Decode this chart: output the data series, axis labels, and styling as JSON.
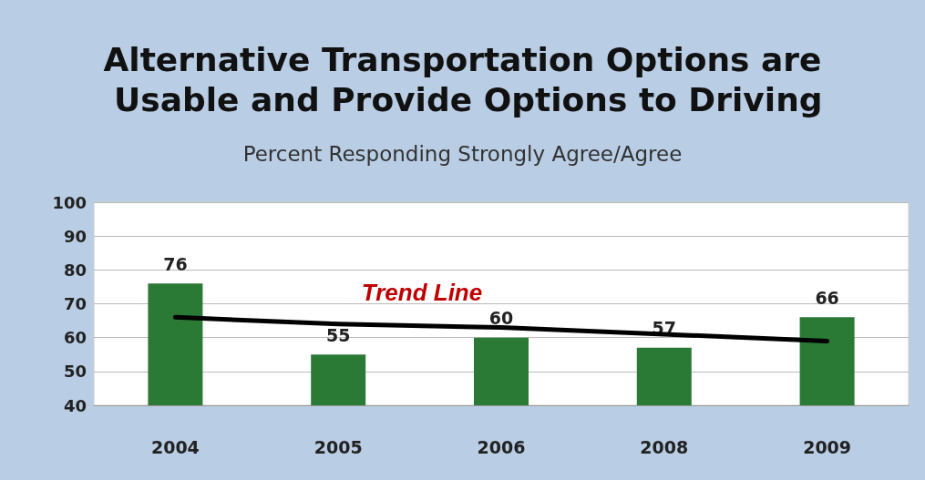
{
  "chart_data": {
    "type": "bar",
    "title": "Alternative Transportation Options are Usable and Provide Options to Driving",
    "subtitle": "Percent Responding Strongly Agree/Agree",
    "categories": [
      "2004",
      "2005",
      "2006",
      "2008",
      "2009"
    ],
    "series": [
      {
        "color": "#2a7a35",
        "values": [
          76,
          55,
          60,
          57,
          66
        ],
        "value_labels": [
          "76",
          "55",
          "60",
          "57",
          "66"
        ]
      },
      {
        "type": "line",
        "color": "#000000",
        "values": [
          66,
          64,
          63,
          61,
          59
        ]
      }
    ],
    "annotations": [
      "Trend Line"
    ],
    "ylim": [
      40,
      100
    ],
    "yticks": [
      40,
      50,
      60,
      70,
      80,
      90,
      100
    ],
    "grid": "y"
  }
}
